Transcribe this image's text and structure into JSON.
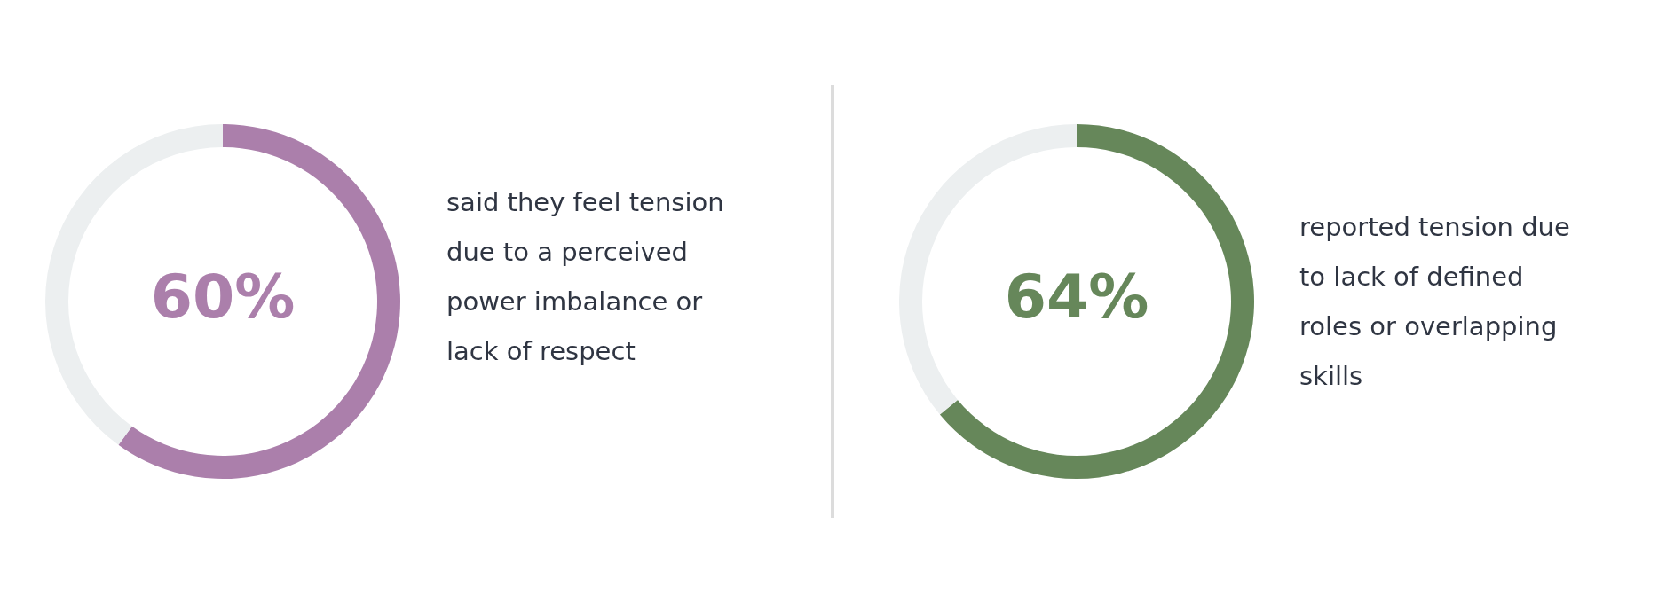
{
  "chart_data": [
    {
      "type": "donut",
      "categories": [
        null,
        null
      ],
      "values": [
        60,
        40
      ],
      "colors": [
        "#ab7fab",
        "#eceff0"
      ],
      "value_labels": [
        "60%",
        null
      ],
      "annotations": [
        "said they feel tension due to a perceived power imbalance or lack of respect"
      ]
    },
    {
      "type": "donut",
      "categories": [
        null,
        null
      ],
      "values": [
        64,
        36
      ],
      "colors": [
        "#66875a",
        "#eceff0"
      ],
      "value_labels": [
        "64%",
        null
      ],
      "annotations": [
        "reported tension due to lack of defined roles or overlapping skills"
      ]
    }
  ]
}
